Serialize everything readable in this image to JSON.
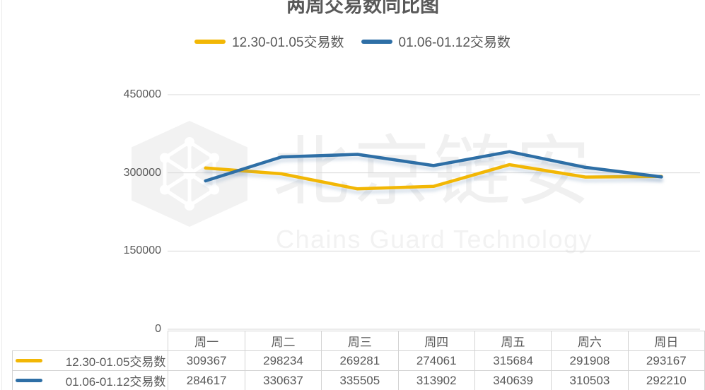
{
  "watermark": {
    "logo": "chains-guard-hexagon-logo",
    "text_cn": "北京链安",
    "text_en": "Chains Guard Technology"
  },
  "chart_data": {
    "type": "line",
    "title": "两周交易数同比图",
    "categories": [
      "周一",
      "周二",
      "周三",
      "周四",
      "周五",
      "周六",
      "周日"
    ],
    "series": [
      {
        "name": "12.30-01.05交易数",
        "color": "#F2B705",
        "values": [
          309367,
          298234,
          269281,
          274061,
          315684,
          291908,
          293167
        ]
      },
      {
        "name": "01.06-01.12交易数",
        "color": "#2E6FA6",
        "values": [
          284617,
          330637,
          335505,
          313902,
          340639,
          310503,
          292210
        ]
      }
    ],
    "ylim": [
      0,
      450000
    ],
    "yticks": [
      0,
      150000,
      300000,
      450000
    ],
    "grid": true,
    "legend_position": "top-center",
    "data_table_shown": true
  },
  "colors": {
    "text": "#595959",
    "grid_line": "#d9d9d9",
    "table_border": "#d3d3d3",
    "watermark_text_cn": "#f0f0f0",
    "watermark_text_en": "#f2f2f2",
    "watermark_logo": "#f2f2f2",
    "background": "#ffffff"
  }
}
